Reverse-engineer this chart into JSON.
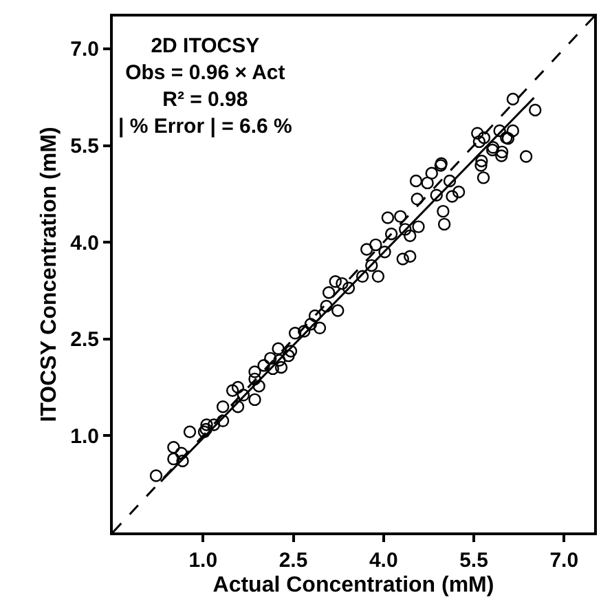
{
  "chart_data": {
    "type": "scatter",
    "xlabel": "Actual Concentration (mM)",
    "ylabel": "ITOCSY Concentration (mM)",
    "xlim": [
      -0.5,
      7.5
    ],
    "ylim": [
      -0.5,
      7.5
    ],
    "xticks": [
      {
        "value": 1,
        "label": "1.0"
      },
      2.5,
      {
        "value": 4,
        "label": "4.0"
      },
      5.5,
      {
        "value": 7,
        "label": "7.0"
      }
    ],
    "yticks": [
      {
        "value": 1,
        "label": "1.0"
      },
      2.5,
      {
        "value": 4,
        "label": "4.0"
      },
      5.5,
      {
        "value": 7,
        "label": "7.0"
      }
    ],
    "annotations": [
      "2D ITOCSY",
      "Obs = 0.96 × Act",
      "R² = 0.98",
      "| % Error | = 6.6 %"
    ],
    "series": [
      {
        "marker": "circle",
        "color": "#000000",
        "x": [
          0.22,
          0.51,
          0.51,
          0.64,
          0.66,
          0.78,
          1.02,
          1.06,
          1.05,
          1.18,
          1.33,
          1.33,
          1.49,
          1.58,
          1.58,
          1.67,
          1.86,
          1.86,
          1.86,
          1.93,
          2.01,
          2.12,
          2.16,
          2.25,
          2.3,
          2.27,
          2.42,
          2.46,
          2.53,
          2.68,
          2.79,
          2.94,
          2.86,
          3.05,
          3.09,
          3.2,
          3.24,
          3.31,
          3.42,
          3.65,
          3.72,
          3.8,
          3.87,
          3.91,
          4.02,
          4.07,
          4.13,
          4.28,
          4.32,
          4.44,
          4.44,
          4.36,
          4.54,
          4.56,
          4.58,
          4.73,
          4.8,
          4.88,
          4.95,
          4.99,
          5.01,
          5.1,
          5.14,
          5.25,
          5.59,
          5.62,
          5.66,
          5.81,
          5.96,
          6.07,
          6.37,
          6.15,
          6.52,
          5.56,
          5.67,
          5.93,
          6.15,
          6.04,
          5.82,
          5.97,
          5.63,
          4.96
        ],
        "values": [
          0.38,
          0.82,
          0.64,
          0.73,
          0.61,
          1.06,
          1.06,
          1.17,
          1.1,
          1.17,
          1.23,
          1.45,
          1.7,
          1.75,
          1.45,
          1.63,
          1.56,
          1.99,
          1.88,
          1.77,
          2.09,
          2.2,
          2.04,
          2.35,
          2.06,
          2.17,
          2.24,
          2.31,
          2.59,
          2.62,
          2.73,
          2.67,
          2.86,
          3.01,
          3.22,
          3.39,
          2.94,
          3.36,
          3.29,
          3.47,
          3.89,
          3.64,
          3.96,
          3.47,
          3.85,
          4.38,
          4.13,
          4.4,
          3.74,
          3.78,
          4.1,
          4.2,
          4.95,
          4.67,
          4.24,
          4.92,
          5.07,
          4.73,
          5.19,
          4.48,
          4.28,
          4.95,
          4.71,
          4.78,
          5.56,
          5.19,
          5.0,
          5.43,
          5.34,
          5.61,
          5.33,
          6.22,
          6.05,
          5.69,
          5.62,
          5.73,
          5.73,
          5.62,
          5.47,
          5.4,
          5.26,
          5.22
        ]
      },
      {
        "type": "line",
        "marker": "none",
        "line_style": "solid",
        "color": "#000000",
        "x": [
          0.3,
          6.5
        ],
        "values": [
          0.29,
          6.24
        ]
      },
      {
        "type": "line",
        "marker": "none",
        "line_style": "dashed",
        "color": "#000000",
        "x": [
          -0.5,
          7.5
        ],
        "values": [
          -0.5,
          7.5
        ]
      }
    ]
  }
}
